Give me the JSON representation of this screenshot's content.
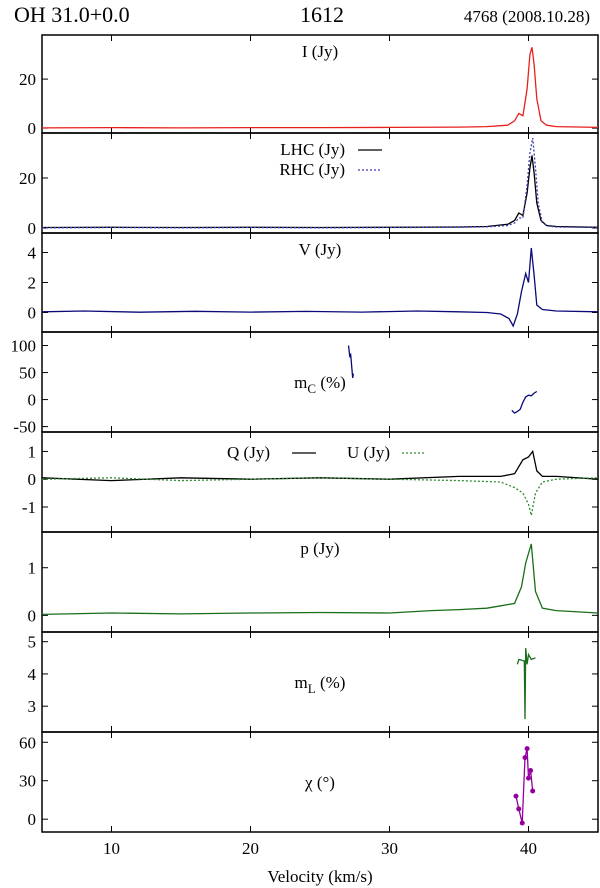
{
  "header": {
    "source": "OH 31.0+0.0",
    "frequency": "1612",
    "epoch": "4768 (2008.10.28)"
  },
  "chart_data": {
    "type": "line",
    "xlabel": "Velocity (km/s)",
    "xlim": [
      5,
      45
    ],
    "xticks": [
      10,
      20,
      30,
      40
    ],
    "panels": [
      {
        "label": "I (Jy)",
        "ylim": [
          -2,
          38
        ],
        "yticks": [
          0,
          20
        ],
        "series": [
          {
            "name": "I",
            "color": "#e8201c",
            "style": "solid",
            "points": [
              [
                5,
                0.1
              ],
              [
                10,
                0.2
              ],
              [
                15,
                0.1
              ],
              [
                20,
                0.2
              ],
              [
                25,
                0.2
              ],
              [
                30,
                0.3
              ],
              [
                35,
                0.4
              ],
              [
                37,
                0.6
              ],
              [
                38.5,
                1.2
              ],
              [
                39,
                3
              ],
              [
                39.3,
                6
              ],
              [
                39.6,
                5
              ],
              [
                39.9,
                16
              ],
              [
                40.1,
                30
              ],
              [
                40.25,
                33
              ],
              [
                40.4,
                26
              ],
              [
                40.6,
                12
              ],
              [
                40.9,
                3
              ],
              [
                41.3,
                1.2
              ],
              [
                42,
                0.6
              ],
              [
                45,
                0.3
              ]
            ]
          }
        ]
      },
      {
        "label": "",
        "ylim": [
          -2,
          38
        ],
        "yticks": [
          0,
          20
        ],
        "legend": [
          "LHC (Jy)",
          "RHC (Jy)"
        ],
        "series": [
          {
            "name": "LHC",
            "color": "#000000",
            "style": "solid",
            "points": [
              [
                5,
                0.2
              ],
              [
                10,
                0.3
              ],
              [
                15,
                0.2
              ],
              [
                20,
                0.3
              ],
              [
                25,
                0.2
              ],
              [
                30,
                0.3
              ],
              [
                35,
                0.4
              ],
              [
                37,
                0.6
              ],
              [
                38.5,
                1.5
              ],
              [
                39,
                3
              ],
              [
                39.3,
                6
              ],
              [
                39.6,
                5
              ],
              [
                39.9,
                14
              ],
              [
                40.1,
                24
              ],
              [
                40.25,
                29
              ],
              [
                40.4,
                22
              ],
              [
                40.6,
                10
              ],
              [
                40.9,
                3
              ],
              [
                41.3,
                1
              ],
              [
                42,
                0.6
              ],
              [
                45,
                0.3
              ]
            ]
          },
          {
            "name": "RHC",
            "color": "#3b3bb3",
            "style": "dotted",
            "points": [
              [
                5,
                0.1
              ],
              [
                10,
                0.2
              ],
              [
                15,
                0.1
              ],
              [
                20,
                0.2
              ],
              [
                25,
                0.1
              ],
              [
                30,
                0.2
              ],
              [
                35,
                0.3
              ],
              [
                37,
                0.5
              ],
              [
                38.5,
                1
              ],
              [
                39,
                2
              ],
              [
                39.3,
                4
              ],
              [
                39.6,
                4
              ],
              [
                39.9,
                17
              ],
              [
                40.1,
                30
              ],
              [
                40.3,
                36
              ],
              [
                40.5,
                24
              ],
              [
                40.7,
                10
              ],
              [
                41,
                2
              ],
              [
                41.4,
                0.8
              ],
              [
                42,
                0.4
              ],
              [
                45,
                0.2
              ]
            ]
          }
        ]
      },
      {
        "label": "V (Jy)",
        "ylim": [
          -1.3,
          5.3
        ],
        "yticks": [
          0,
          2,
          4
        ],
        "series": [
          {
            "name": "V",
            "color": "#0a0a7a",
            "style": "solid",
            "points": [
              [
                5,
                0.05
              ],
              [
                8,
                0.1
              ],
              [
                12,
                0.02
              ],
              [
                16,
                0.08
              ],
              [
                20,
                0.03
              ],
              [
                24,
                0.07
              ],
              [
                28,
                0.03
              ],
              [
                32,
                0.1
              ],
              [
                35,
                0.05
              ],
              [
                37,
                0.0
              ],
              [
                38,
                -0.1
              ],
              [
                38.6,
                -0.4
              ],
              [
                38.9,
                -0.9
              ],
              [
                39.2,
                -0.1
              ],
              [
                39.5,
                1.4
              ],
              [
                39.8,
                2.6
              ],
              [
                40.0,
                2.0
              ],
              [
                40.2,
                4.3
              ],
              [
                40.4,
                2.5
              ],
              [
                40.6,
                0.5
              ],
              [
                41,
                0.2
              ],
              [
                42,
                0.1
              ],
              [
                45,
                0.05
              ]
            ]
          }
        ]
      },
      {
        "label": "mC (%)",
        "ylim": [
          -60,
          125
        ],
        "yticks": [
          -50,
          0,
          50,
          100
        ],
        "series": [
          {
            "name": "mC low",
            "color": "#0a0a7a",
            "style": "solid",
            "points": [
              [
                27.05,
                100
              ],
              [
                27.15,
                78
              ],
              [
                27.2,
                85
              ],
              [
                27.3,
                55
              ],
              [
                27.35,
                40
              ],
              [
                27.4,
                48
              ]
            ]
          },
          {
            "name": "mC high",
            "color": "#0a0a7a",
            "style": "solid",
            "points": [
              [
                38.8,
                -20
              ],
              [
                39.0,
                -25
              ],
              [
                39.2,
                -22
              ],
              [
                39.4,
                -18
              ],
              [
                39.6,
                -5
              ],
              [
                39.8,
                5
              ],
              [
                40.0,
                8
              ],
              [
                40.2,
                7
              ],
              [
                40.4,
                12
              ],
              [
                40.6,
                15
              ]
            ]
          }
        ]
      },
      {
        "label": "",
        "ylim": [
          -1.9,
          1.7
        ],
        "yticks": [
          -1,
          0,
          1
        ],
        "legend": [
          "Q (Jy)",
          "U (Jy)"
        ],
        "series": [
          {
            "name": "Q",
            "color": "#000000",
            "style": "solid",
            "points": [
              [
                5,
                0.05
              ],
              [
                10,
                -0.05
              ],
              [
                15,
                0.05
              ],
              [
                20,
                0.0
              ],
              [
                25,
                0.05
              ],
              [
                30,
                0.0
              ],
              [
                35,
                0.1
              ],
              [
                38,
                0.1
              ],
              [
                39,
                0.2
              ],
              [
                39.6,
                0.7
              ],
              [
                40.0,
                0.8
              ],
              [
                40.3,
                1.0
              ],
              [
                40.6,
                0.3
              ],
              [
                41,
                0.1
              ],
              [
                42,
                0.1
              ],
              [
                45,
                0.0
              ]
            ]
          },
          {
            "name": "U",
            "color": "#2e8b2e",
            "style": "dotted",
            "points": [
              [
                5,
                0.0
              ],
              [
                10,
                0.05
              ],
              [
                15,
                -0.05
              ],
              [
                20,
                0.0
              ],
              [
                25,
                0.05
              ],
              [
                30,
                0.0
              ],
              [
                35,
                -0.05
              ],
              [
                38,
                -0.1
              ],
              [
                39,
                -0.3
              ],
              [
                39.6,
                -0.5
              ],
              [
                40.0,
                -0.9
              ],
              [
                40.2,
                -1.3
              ],
              [
                40.5,
                -0.5
              ],
              [
                41,
                -0.1
              ],
              [
                42,
                0.0
              ],
              [
                45,
                0.05
              ]
            ]
          }
        ]
      },
      {
        "label": "p (Jy)",
        "ylim": [
          -0.35,
          1.75
        ],
        "yticks": [
          0,
          1
        ],
        "series": [
          {
            "name": "p",
            "color": "#1a6e1a",
            "style": "solid",
            "points": [
              [
                5,
                0.02
              ],
              [
                10,
                0.05
              ],
              [
                15,
                0.03
              ],
              [
                20,
                0.05
              ],
              [
                25,
                0.06
              ],
              [
                30,
                0.05
              ],
              [
                33,
                0.1
              ],
              [
                35,
                0.12
              ],
              [
                37,
                0.15
              ],
              [
                38,
                0.2
              ],
              [
                39,
                0.25
              ],
              [
                39.5,
                0.6
              ],
              [
                39.8,
                1.1
              ],
              [
                40.2,
                1.5
              ],
              [
                40.5,
                0.5
              ],
              [
                41,
                0.15
              ],
              [
                42,
                0.1
              ],
              [
                45,
                0.05
              ]
            ]
          }
        ]
      },
      {
        "label": "mL (%)",
        "ylim": [
          2.2,
          5.3
        ],
        "yticks": [
          3,
          4,
          5
        ],
        "series": [
          {
            "name": "mL",
            "color": "#1a6e1a",
            "style": "solid",
            "points": [
              [
                39.2,
                4.3
              ],
              [
                39.3,
                4.45
              ],
              [
                39.7,
                4.4
              ],
              [
                39.75,
                2.6
              ],
              [
                39.8,
                4.8
              ],
              [
                39.9,
                4.3
              ],
              [
                40.0,
                4.6
              ],
              [
                40.2,
                4.45
              ],
              [
                40.5,
                4.5
              ]
            ]
          }
        ]
      },
      {
        "label": "χ (°)",
        "ylim": [
          -10,
          68
        ],
        "yticks": [
          0,
          30,
          60
        ],
        "series": [
          {
            "name": "chi",
            "color": "#9400a0",
            "style": "solid-marker",
            "points": [
              [
                39.1,
                18
              ],
              [
                39.3,
                8
              ],
              [
                39.55,
                -3
              ],
              [
                39.75,
                48
              ],
              [
                39.9,
                55
              ],
              [
                40.0,
                32
              ],
              [
                40.15,
                38
              ],
              [
                40.3,
                22
              ]
            ]
          }
        ]
      }
    ]
  }
}
